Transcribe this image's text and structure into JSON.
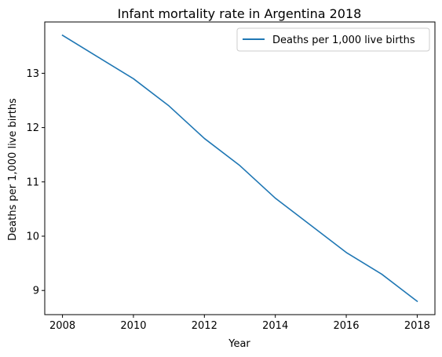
{
  "chart_data": {
    "type": "line",
    "title": "Infant mortality rate in Argentina 2018",
    "xlabel": "Year",
    "ylabel": "Deaths per 1,000 live births",
    "x": [
      2008,
      2009,
      2010,
      2011,
      2012,
      2013,
      2014,
      2015,
      2016,
      2017,
      2018
    ],
    "series": [
      {
        "name": "Deaths per 1,000 live births",
        "values": [
          13.7,
          13.3,
          12.9,
          12.4,
          11.8,
          11.3,
          10.7,
          10.2,
          9.7,
          9.3,
          8.8
        ],
        "color": "#1f77b4"
      }
    ],
    "xticks": [
      2008,
      2010,
      2012,
      2014,
      2016,
      2018
    ],
    "yticks": [
      9,
      10,
      11,
      12,
      13
    ],
    "xlim": [
      2007.5,
      2018.5
    ],
    "ylim": [
      8.555,
      13.945
    ],
    "legend": "upper-right",
    "grid": false
  }
}
